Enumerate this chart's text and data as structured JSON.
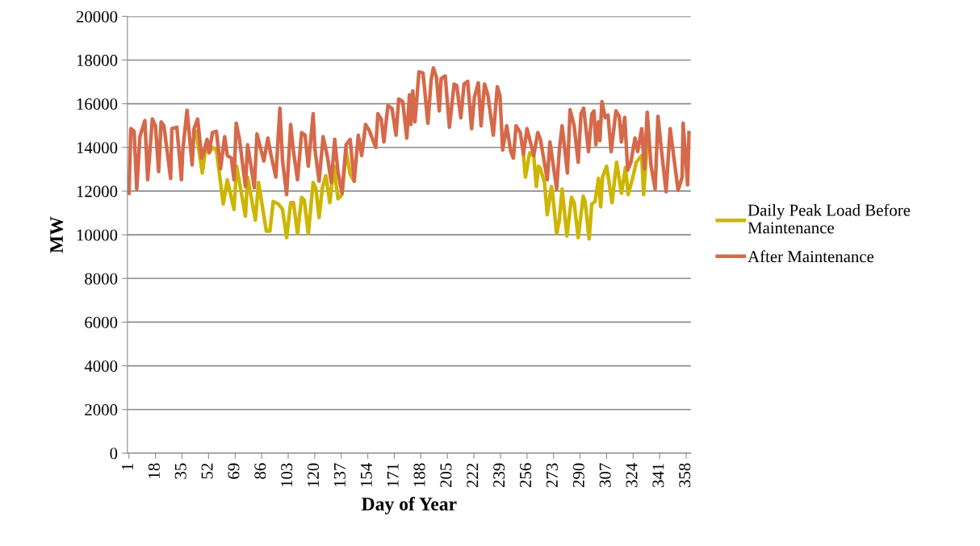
{
  "chart_data": {
    "type": "line",
    "xlabel": "Day of Year",
    "ylabel": "MW",
    "xlim": [
      0,
      361
    ],
    "ylim": [
      0,
      20000
    ],
    "xticks": [
      1,
      18,
      35,
      52,
      69,
      86,
      103,
      120,
      137,
      154,
      171,
      188,
      205,
      222,
      239,
      256,
      273,
      290,
      307,
      324,
      341,
      358
    ],
    "yticks": [
      0,
      2000,
      4000,
      6000,
      8000,
      10000,
      12000,
      14000,
      16000,
      18000,
      20000
    ],
    "grid": "y",
    "legend": "right",
    "marker": "none",
    "line_style": "solid",
    "series": [
      {
        "name": "Daily Peak Load Before Maintenance",
        "color": "#cdb500",
        "x": [
          44,
          48,
          50,
          52.4,
          54.5,
          57,
          61.4,
          64,
          68.3,
          70,
          75.6,
          77,
          82,
          84,
          89,
          91.3,
          93.4,
          96.7,
          99.4,
          102,
          104.6,
          106.4,
          109,
          111.6,
          113.3,
          115.9,
          119,
          120.7,
          122.8,
          124.9,
          127.1,
          129.7,
          132.3,
          134.9,
          137.5,
          140.1,
          142.7,
          145.3,
          null,
          253.7,
          255,
          257.7,
          260.3,
          262,
          263.4,
          264.6,
          267.2,
          269,
          271.6,
          272.4,
          275,
          276.7,
          278.5,
          281.6,
          284.5,
          286.2,
          288.8,
          292,
          293.2,
          295.8,
          297.5,
          299.6,
          301.8,
          303.2,
          304.4,
          307,
          310.5,
          313.4,
          316.5,
          319.1,
          320.8,
          323.4,
          326,
          329.5,
          330.7,
          333
        ],
        "values": [
          14740,
          12830,
          13880,
          13760,
          14000,
          13880,
          11410,
          12520,
          11160,
          13140,
          10850,
          12640,
          10670,
          12400,
          10170,
          10170,
          11530,
          11410,
          11160,
          9870,
          11470,
          11470,
          10050,
          11710,
          11590,
          10050,
          12400,
          12150,
          10790,
          12150,
          12710,
          11470,
          13140,
          11650,
          11840,
          13880,
          12770,
          12460,
          null,
          13690,
          12640,
          13750,
          13630,
          12210,
          13140,
          13020,
          12400,
          10920,
          12210,
          11900,
          10050,
          10670,
          12090,
          9940,
          11710,
          11470,
          9870,
          11770,
          11530,
          9810,
          11410,
          11530,
          12580,
          11280,
          12640,
          13140,
          11470,
          13320,
          11900,
          13080,
          11840,
          12520,
          13320,
          13630,
          11840,
          14120
        ]
      },
      {
        "name": "After Maintenance",
        "color": "#d5694a",
        "x": [
          1,
          2.2,
          4.3,
          6,
          8,
          11.2,
          13,
          16,
          18,
          20,
          21.6,
          23.4,
          27.7,
          28.5,
          31.7,
          34.6,
          35.5,
          38.2,
          41.5,
          42.7,
          45,
          47.6,
          49.3,
          51,
          52.4,
          54.5,
          57,
          59.7,
          62.3,
          64,
          66.6,
          68.3,
          69.7,
          71.8,
          75.6,
          77,
          78.7,
          81.3,
          83,
          87.4,
          90,
          91.7,
          95.1,
          97.7,
          99.4,
          102,
          104.6,
          106.4,
          109,
          111.6,
          113.8,
          115.9,
          119,
          120.2,
          122.8,
          125.4,
          128.3,
          130.6,
          132.8,
          134.9,
          137.5,
          140.1,
          142.7,
          145.3,
          147.9,
          150.1,
          152.6,
          154.8,
          159.1,
          160.5,
          162.6,
          164.3,
          166.9,
          169.5,
          172.1,
          173.8,
          176.4,
          179,
          180.7,
          181.6,
          182.8,
          184.2,
          186.8,
          189.4,
          192.5,
          194.6,
          196,
          198,
          199.8,
          201,
          203.6,
          206.3,
          209.3,
          211,
          213.6,
          215.7,
          218,
          220.5,
          222.3,
          224.8,
          226.6,
          228.8,
          230.9,
          234.4,
          237,
          238.7,
          240.4,
          243,
          245.6,
          247.3,
          249,
          251.7,
          253.7,
          256,
          260.3,
          262.9,
          264.6,
          269,
          270.7,
          275,
          276.7,
          278.5,
          281.9,
          283.6,
          286.2,
          288.8,
          290.6,
          292.3,
          295.4,
          297.5,
          298.9,
          300.1,
          301.8,
          302.7,
          304,
          306.1,
          307.9,
          309.9,
          313,
          315.1,
          316.5,
          318.6,
          320.5,
          322.6,
          325.2,
          326.9,
          329.5,
          331.2,
          333,
          335.5,
          338.1,
          339.9,
          342.5,
          345.1,
          347.7,
          352.8,
          355.4,
          356,
          358.9,
          359.8
        ],
        "values": [
          11900,
          14860,
          14740,
          12090,
          14490,
          15230,
          12520,
          15300,
          14990,
          12890,
          15170,
          14990,
          12580,
          14860,
          14920,
          12520,
          13880,
          15700,
          13200,
          14860,
          15300,
          13510,
          13880,
          14370,
          13760,
          14680,
          14740,
          13020,
          14490,
          13630,
          13510,
          12520,
          15110,
          14370,
          12210,
          14120,
          13380,
          12150,
          14620,
          13380,
          14430,
          13750,
          12640,
          15790,
          13380,
          11840,
          15050,
          13810,
          12520,
          14680,
          14560,
          13140,
          15540,
          13880,
          12460,
          14490,
          13510,
          12400,
          14370,
          12890,
          11900,
          14120,
          14370,
          12460,
          14560,
          13630,
          15050,
          14800,
          14000,
          15540,
          15300,
          14250,
          15910,
          15790,
          14560,
          16220,
          16100,
          14430,
          16410,
          15050,
          16590,
          15170,
          17460,
          17400,
          15110,
          17090,
          17640,
          17210,
          15670,
          17150,
          17270,
          14920,
          16900,
          16840,
          15360,
          16900,
          17030,
          14860,
          16290,
          16960,
          14990,
          16900,
          16410,
          14560,
          16780,
          16350,
          13880,
          14990,
          13810,
          13510,
          14990,
          14680,
          13690,
          14860,
          13630,
          14680,
          14370,
          12520,
          14250,
          12090,
          13880,
          14990,
          12830,
          15730,
          14990,
          13320,
          15540,
          15790,
          13810,
          15540,
          15670,
          14120,
          15170,
          14310,
          16100,
          15360,
          15480,
          13810,
          15670,
          15420,
          14250,
          15380,
          12960,
          13320,
          14430,
          13810,
          14860,
          13020,
          15610,
          13140,
          12090,
          15420,
          13630,
          11970,
          14860,
          12030,
          12640,
          15110,
          12280,
          14680
        ]
      }
    ]
  }
}
